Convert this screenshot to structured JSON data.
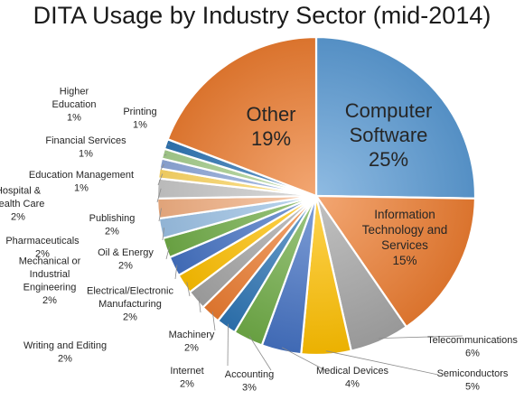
{
  "chart_data": {
    "type": "pie",
    "title": "DITA Usage by Industry Sector (mid-2014)",
    "slices": [
      {
        "label": "Computer Software",
        "display": [
          "Computer",
          "Software",
          "25%"
        ],
        "value": 25,
        "color": "#5b9bd5"
      },
      {
        "label": "Information Technology and Services",
        "display": [
          "Information",
          "Technology and",
          "Services",
          "15%"
        ],
        "value": 15,
        "color": "#ed7d31"
      },
      {
        "label": "Telecommunications",
        "display": [
          "Telecommunications",
          "6%"
        ],
        "value": 6,
        "color": "#a5a5a5"
      },
      {
        "label": "Semiconductors",
        "display": [
          "Semiconductors",
          "5%"
        ],
        "value": 5,
        "color": "#ffc000"
      },
      {
        "label": "Medical Devices",
        "display": [
          "Medical Devices",
          "4%"
        ],
        "value": 4,
        "color": "#4472c4"
      },
      {
        "label": "Accounting",
        "display": [
          "Accounting",
          "3%"
        ],
        "value": 3,
        "color": "#70ad47"
      },
      {
        "label": "Internet",
        "display": [
          "Internet",
          "2%"
        ],
        "value": 2,
        "color": "#2e75b6"
      },
      {
        "label": "Machinery",
        "display": [
          "Machinery",
          "2%"
        ],
        "value": 2,
        "color": "#ed7d31"
      },
      {
        "label": "Writing and Editing",
        "display": [
          "Writing and Editing",
          "2%"
        ],
        "value": 2,
        "color": "#a5a5a5"
      },
      {
        "label": "Electrical/Electronic Manufacturing",
        "display": [
          "Electrical/Electronic",
          "Manufacturing",
          "2%"
        ],
        "value": 2,
        "color": "#ffc000"
      },
      {
        "label": "Mechanical or Industrial Engineering",
        "display": [
          "Mechanical or",
          "Industrial",
          "Engineering",
          "2%"
        ],
        "value": 2,
        "color": "#4472c4"
      },
      {
        "label": "Oil & Energy",
        "display": [
          "Oil & Energy",
          "2%"
        ],
        "value": 2,
        "color": "#70ad47"
      },
      {
        "label": "Pharmaceuticals",
        "display": [
          "Pharmaceuticals",
          "2%"
        ],
        "value": 2,
        "color": "#9dc3e6"
      },
      {
        "label": "Publishing",
        "display": [
          "Publishing",
          "2%"
        ],
        "value": 2,
        "color": "#f4b183"
      },
      {
        "label": "Hospital & Health Care",
        "display": [
          "Hospital &",
          "Health Care",
          "2%"
        ],
        "value": 2,
        "color": "#c9c9c9"
      },
      {
        "label": "Education Management",
        "display": [
          "Education Management",
          "1%"
        ],
        "value": 1,
        "color": "#ffd966"
      },
      {
        "label": "Financial Services",
        "display": [
          "Financial Services",
          "1%"
        ],
        "value": 1,
        "color": "#8faadc"
      },
      {
        "label": "Higher Education",
        "display": [
          "Higher",
          "Education",
          "1%"
        ],
        "value": 1,
        "color": "#a9d18e"
      },
      {
        "label": "Printing",
        "display": [
          "Printing",
          "1%"
        ],
        "value": 1,
        "color": "#2e75b6"
      },
      {
        "label": "Other",
        "display": [
          "Other",
          "19%"
        ],
        "value": 19,
        "color": "#ed7d31"
      }
    ]
  }
}
